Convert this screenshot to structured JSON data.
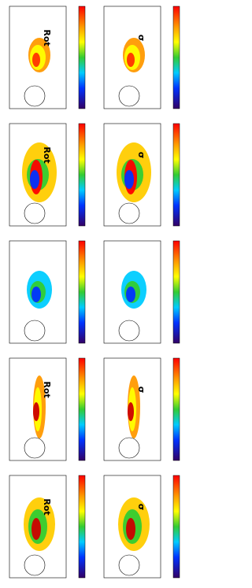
{
  "rows": [
    [
      "Rot",
      "σ"
    ],
    [
      "Rot",
      "σ"
    ],
    [
      null,
      null
    ],
    [
      "Rot",
      "σ"
    ],
    [
      "Rot",
      "σ"
    ]
  ]
}
